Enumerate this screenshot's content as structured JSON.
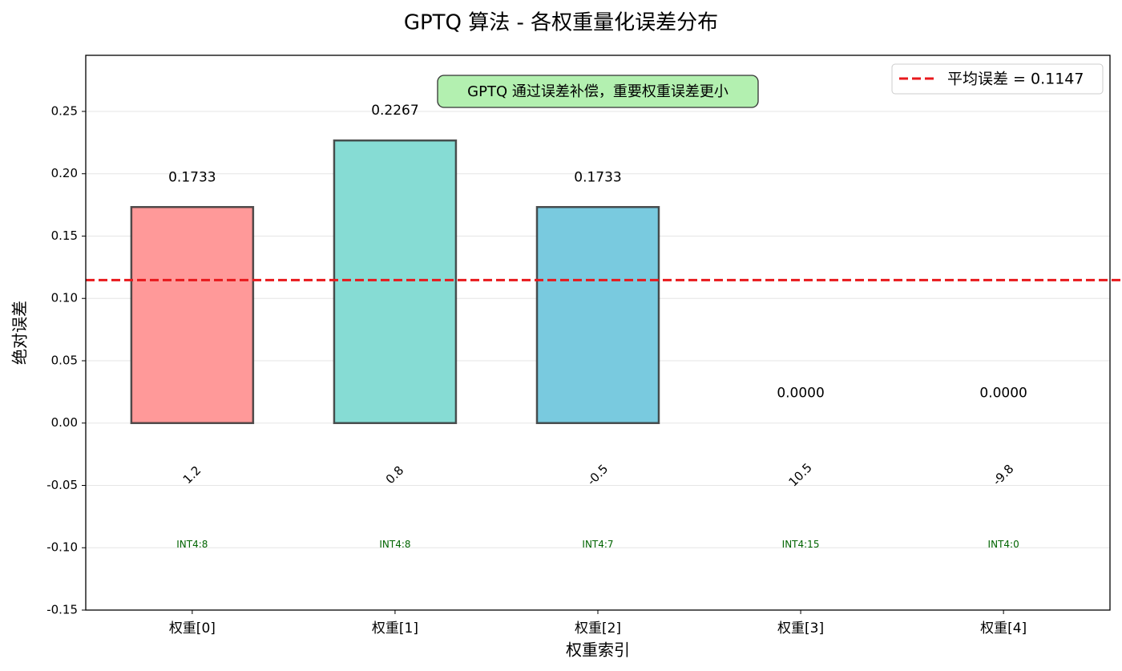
{
  "chart_data": {
    "type": "bar",
    "title": "GPTQ 算法 - 各权重量化误差分布",
    "x_label": "权重索引",
    "y_label": "绝对误差",
    "categories": [
      "权重[0]",
      "权重[1]",
      "权重[2]",
      "权重[3]",
      "权重[4]"
    ],
    "values": [
      0.1733,
      0.2267,
      0.1733,
      0,
      0
    ],
    "value_labels": [
      "0.1733",
      "0.2267",
      "0.1733",
      "0.0000",
      "0.0000"
    ],
    "colors": [
      "#ff9999",
      "#86dcd4",
      "#79cadf",
      "#a0a0a0",
      "#a0a0a0"
    ],
    "edge_color": "#333333",
    "weight_labels": [
      "1.2",
      "0.8",
      "-0.5",
      "10.5",
      "-9.8"
    ],
    "quant_labels": [
      "INT4:8",
      "INT4:8",
      "INT4:7",
      "INT4:15",
      "INT4:0"
    ],
    "mean_line": {
      "value": 0.1147,
      "label": "平均误差 = 0.1147",
      "color": "#e8191c"
    },
    "annotation": "GPTQ 通过误差补偿，重要权重误差更小",
    "ylim": [
      -0.15,
      0.295
    ],
    "yticks": [
      {
        "value": -0.15,
        "label": "-0.15"
      },
      {
        "value": -0.1,
        "label": "-0.10"
      },
      {
        "value": -0.05,
        "label": "-0.05"
      },
      {
        "value": 0,
        "label": "0.00"
      },
      {
        "value": 0.05,
        "label": "0.05"
      },
      {
        "value": 0.1,
        "label": "0.10"
      },
      {
        "value": 0.15,
        "label": "0.15"
      },
      {
        "value": 0.2,
        "label": "0.20"
      },
      {
        "value": 0.25,
        "label": "0.25"
      }
    ],
    "grid": true,
    "legend": "upper right"
  }
}
